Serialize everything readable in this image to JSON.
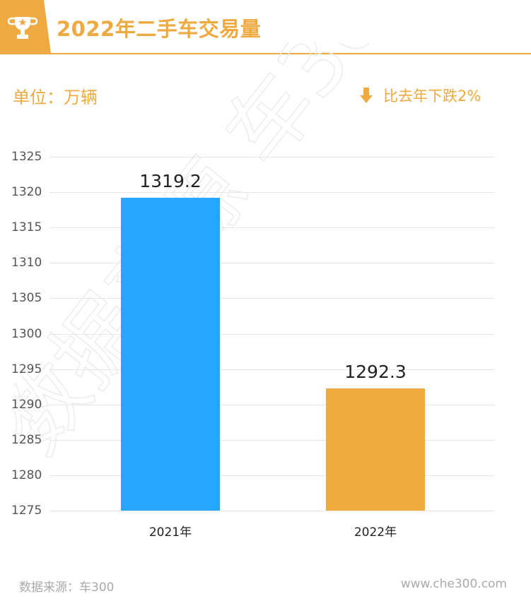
{
  "header": {
    "title": "2022年二手车交易量",
    "icon": "trophy-icon"
  },
  "unit_label": "单位：万辆",
  "change": {
    "icon": "arrow-down-icon",
    "text": "比去年下跌2%"
  },
  "watermark": "数据来源 车300",
  "footer": {
    "source": "数据来源：车300",
    "url": "www.che300.com"
  },
  "colors": {
    "accent": "#eeaa40",
    "bar_2021": "#26a7ff",
    "bar_2022": "#f0aa40"
  },
  "chart_data": {
    "type": "bar",
    "title": "2022年二手车交易量",
    "ylabel": "单位：万辆",
    "xlabel": "",
    "categories": [
      "2021年",
      "2022年"
    ],
    "values": [
      1319.2,
      1292.3
    ],
    "data_labels": [
      "1319.2",
      "1292.3"
    ],
    "bar_colors": [
      "#26a7ff",
      "#f0aa40"
    ],
    "ylim": [
      1275,
      1325
    ],
    "yticks": [
      1275,
      1280,
      1285,
      1290,
      1295,
      1300,
      1305,
      1310,
      1315,
      1320,
      1325
    ],
    "grid": true,
    "legend": null,
    "annotation": "比去年下跌2%"
  }
}
